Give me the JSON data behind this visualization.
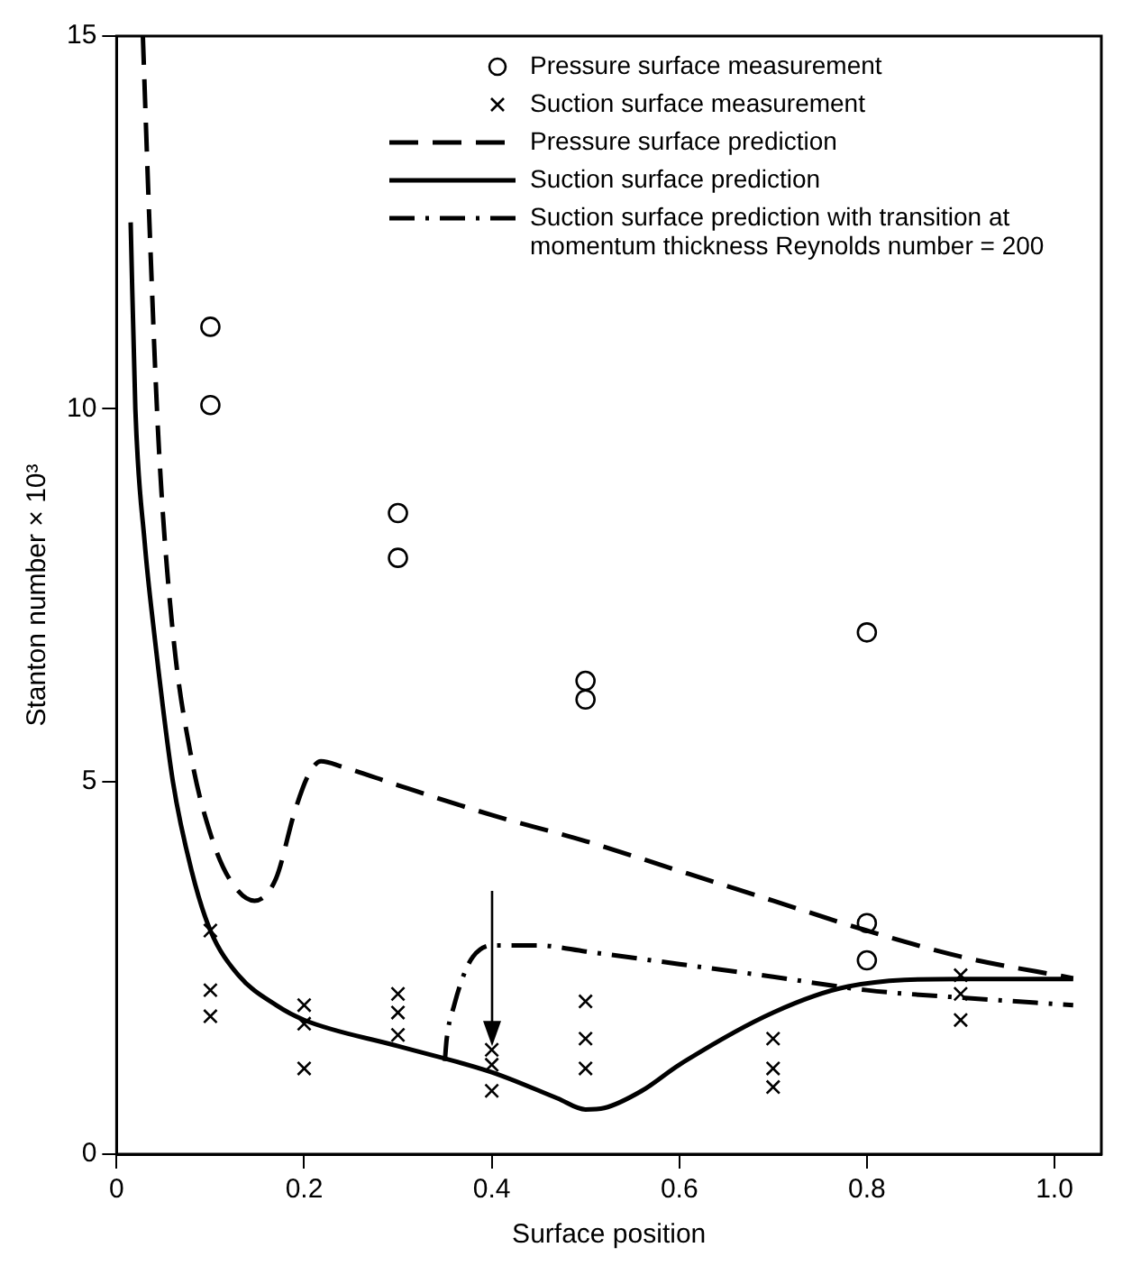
{
  "chart_data": {
    "type": "line",
    "xlabel": "Surface position",
    "ylabel": "Stanton number × 10³",
    "xlim": [
      0,
      1.05
    ],
    "ylim": [
      0,
      15
    ],
    "xticks": [
      0,
      0.2,
      0.4,
      0.6,
      0.8,
      {
        "value": 1,
        "label": "1.0"
      }
    ],
    "yticks": [
      0,
      5,
      10,
      15
    ],
    "grid": false,
    "legend": "top right",
    "series": [
      {
        "name": "Pressure surface measurement",
        "type": "scatter",
        "marker": "circle",
        "color": "#000000",
        "x": [
          0.1,
          0.1,
          0.3,
          0.3,
          0.5,
          0.5,
          0.8,
          0.8,
          0.8
        ],
        "values": [
          11.1,
          10.05,
          8.6,
          8.0,
          6.35,
          6.1,
          7.0,
          3.1,
          2.6
        ]
      },
      {
        "name": "Suction surface measurement",
        "type": "scatter",
        "marker": "cross",
        "color": "#000000",
        "x": [
          0.1,
          0.1,
          0.1,
          0.2,
          0.2,
          0.2,
          0.3,
          0.3,
          0.3,
          0.4,
          0.4,
          0.4,
          0.5,
          0.5,
          0.5,
          0.7,
          0.7,
          0.7,
          0.9,
          0.9,
          0.9
        ],
        "values": [
          3.0,
          2.2,
          1.85,
          2.0,
          1.75,
          1.15,
          2.15,
          1.9,
          1.6,
          1.4,
          1.2,
          0.85,
          2.05,
          1.55,
          1.15,
          1.55,
          1.15,
          0.9,
          2.4,
          2.15,
          1.8
        ]
      },
      {
        "name": "Pressure surface prediction",
        "line_style": "dashed",
        "marker": "none",
        "color": "#000000",
        "x": [
          0.028,
          0.035,
          0.045,
          0.06,
          0.08,
          0.1,
          0.12,
          0.147,
          0.17,
          0.19,
          0.205,
          0.218,
          0.24,
          0.3,
          0.4,
          0.5,
          0.6,
          0.7,
          0.8,
          0.9,
          1.02
        ],
        "values": [
          15,
          12.5,
          9.5,
          7.0,
          5.3,
          4.3,
          3.7,
          3.4,
          3.7,
          4.6,
          5.1,
          5.27,
          5.2,
          4.95,
          4.55,
          4.2,
          3.8,
          3.4,
          3.0,
          2.65,
          2.36
        ]
      },
      {
        "name": "Suction surface prediction",
        "line_style": "solid",
        "marker": "none",
        "color": "#000000",
        "x": [
          0.015,
          0.02,
          0.03,
          0.04,
          0.06,
          0.08,
          0.1,
          0.13,
          0.17,
          0.2,
          0.3,
          0.4,
          0.47,
          0.5,
          0.52,
          0.56,
          0.6,
          0.7,
          0.78,
          0.9,
          1.02
        ],
        "values": [
          12.5,
          10.0,
          8.2,
          7.0,
          5.0,
          3.8,
          3.0,
          2.4,
          2.0,
          1.8,
          1.45,
          1.1,
          0.75,
          0.6,
          0.62,
          0.85,
          1.2,
          1.9,
          2.25,
          2.35,
          2.35
        ]
      },
      {
        "name": "Suction surface prediction with transition at momentum thickness Reynolds number = 200",
        "line_style": "dashdot",
        "marker": "none",
        "color": "#000000",
        "x": [
          0.35,
          0.352,
          0.36,
          0.37,
          0.38,
          0.4,
          0.45,
          0.5,
          0.6,
          0.7,
          0.8,
          0.9,
          1.02
        ],
        "values": [
          1.25,
          1.55,
          2.0,
          2.4,
          2.65,
          2.8,
          2.8,
          2.72,
          2.55,
          2.38,
          2.2,
          2.1,
          2.0
        ]
      }
    ]
  }
}
